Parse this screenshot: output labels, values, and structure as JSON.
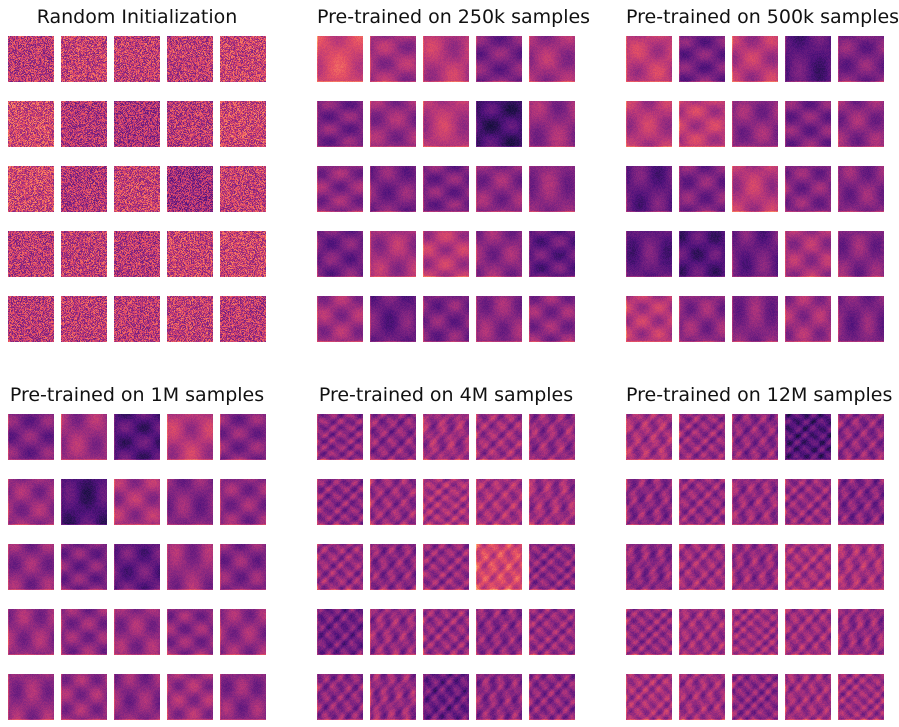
{
  "colormap": "magma",
  "colors": {
    "background": "#ffffff",
    "title": "#111111"
  },
  "panels": [
    {
      "title": "Random Initialization",
      "style": "random",
      "tile_levels": [
        [
          0.52,
          0.55,
          0.54,
          0.53,
          0.56
        ],
        [
          0.58,
          0.5,
          0.48,
          0.52,
          0.57
        ],
        [
          0.57,
          0.5,
          0.55,
          0.45,
          0.54
        ],
        [
          0.52,
          0.53,
          0.51,
          0.55,
          0.56
        ],
        [
          0.52,
          0.53,
          0.52,
          0.54,
          0.52
        ]
      ]
    },
    {
      "title": "Pre-trained on 250k samples",
      "style": "smooth",
      "tile_levels": [
        [
          0.58,
          0.45,
          0.5,
          0.36,
          0.45
        ],
        [
          0.36,
          0.42,
          0.5,
          0.22,
          0.42
        ],
        [
          0.4,
          0.36,
          0.36,
          0.4,
          0.4
        ],
        [
          0.34,
          0.46,
          0.5,
          0.4,
          0.3
        ],
        [
          0.44,
          0.32,
          0.36,
          0.4,
          0.4
        ]
      ]
    },
    {
      "title": "Pre-trained on 500k samples",
      "style": "smooth",
      "tile_levels": [
        [
          0.52,
          0.34,
          0.5,
          0.28,
          0.36
        ],
        [
          0.5,
          0.52,
          0.4,
          0.36,
          0.4
        ],
        [
          0.3,
          0.36,
          0.5,
          0.38,
          0.38
        ],
        [
          0.3,
          0.26,
          0.32,
          0.46,
          0.38
        ],
        [
          0.5,
          0.4,
          0.38,
          0.44,
          0.36
        ]
      ]
    },
    {
      "title": "Pre-trained on 1M samples",
      "style": "smooth",
      "tile_levels": [
        [
          0.36,
          0.44,
          0.26,
          0.5,
          0.38
        ],
        [
          0.42,
          0.24,
          0.46,
          0.38,
          0.4
        ],
        [
          0.4,
          0.36,
          0.3,
          0.42,
          0.38
        ],
        [
          0.42,
          0.4,
          0.42,
          0.4,
          0.42
        ],
        [
          0.42,
          0.42,
          0.4,
          0.44,
          0.4
        ]
      ]
    },
    {
      "title": "Pre-trained on 4M samples",
      "style": "textured",
      "tile_levels": [
        [
          0.4,
          0.4,
          0.44,
          0.44,
          0.42
        ],
        [
          0.4,
          0.42,
          0.46,
          0.46,
          0.44
        ],
        [
          0.42,
          0.4,
          0.42,
          0.58,
          0.4
        ],
        [
          0.34,
          0.42,
          0.42,
          0.4,
          0.42
        ],
        [
          0.4,
          0.42,
          0.32,
          0.4,
          0.4
        ]
      ]
    },
    {
      "title": "Pre-trained on 12M samples",
      "style": "textured",
      "tile_levels": [
        [
          0.46,
          0.42,
          0.4,
          0.26,
          0.4
        ],
        [
          0.4,
          0.42,
          0.42,
          0.42,
          0.38
        ],
        [
          0.4,
          0.44,
          0.42,
          0.46,
          0.46
        ],
        [
          0.42,
          0.44,
          0.44,
          0.44,
          0.42
        ],
        [
          0.46,
          0.44,
          0.4,
          0.44,
          0.44
        ]
      ]
    }
  ]
}
